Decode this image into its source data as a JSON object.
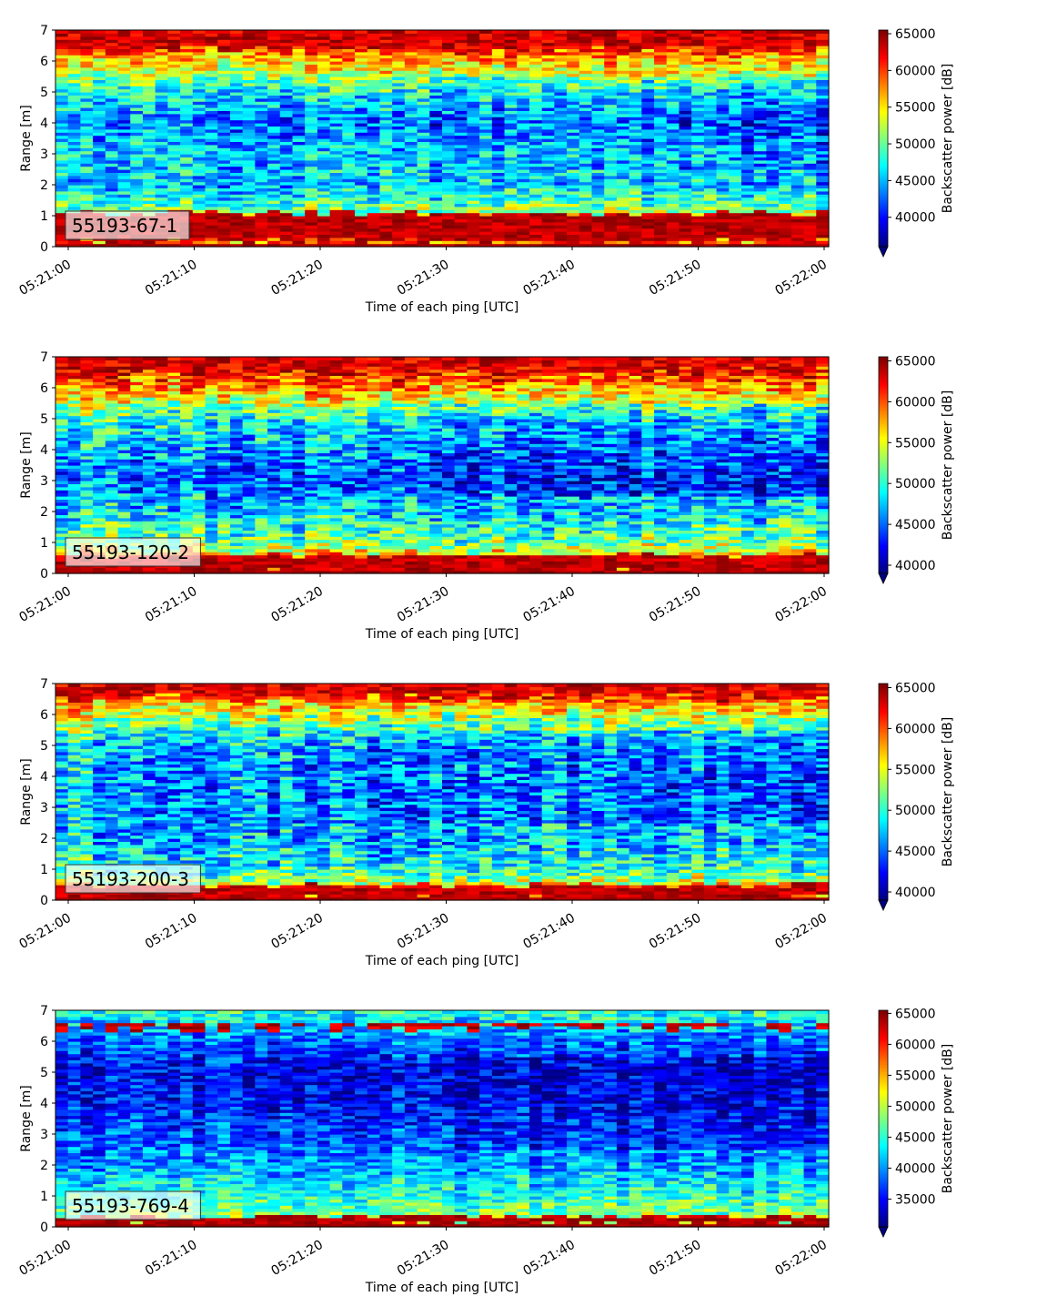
{
  "chart_data": [
    {
      "type": "heatmap",
      "label": "55193-67-1",
      "xlabel": "Time of each ping [UTC]",
      "ylabel": "Range [m]",
      "colorbar_label": "Backscatter power [dB]",
      "x_range": [
        "05:21:00",
        "05:22:00"
      ],
      "x_ticks": [
        "05:21:00",
        "05:21:10",
        "05:21:20",
        "05:21:30",
        "05:21:40",
        "05:21:50",
        "05:22:00"
      ],
      "ylim": [
        0,
        7
      ],
      "y_ticks": [
        "0",
        "1",
        "2",
        "3",
        "4",
        "5",
        "6",
        "7"
      ],
      "clim": [
        36000,
        65500
      ],
      "colorbar_ticks": [
        "40000",
        "45000",
        "50000",
        "55000",
        "60000",
        "65000"
      ],
      "colormap": "jet",
      "colorbar_extend": "min",
      "surface_band_m": [
        0.2,
        1.1
      ],
      "top_band_m": [
        6.3,
        7.0
      ],
      "profile_range_m": [
        0,
        1,
        2,
        3,
        4,
        5,
        6,
        7
      ],
      "profile_power": [
        60000,
        52000,
        45000,
        47000,
        44000,
        48000,
        56000,
        65000
      ]
    },
    {
      "type": "heatmap",
      "label": "55193-120-2",
      "xlabel": "Time of each ping [UTC]",
      "ylabel": "Range [m]",
      "colorbar_label": "Backscatter power [dB]",
      "x_range": [
        "05:21:00",
        "05:22:00"
      ],
      "x_ticks": [
        "05:21:00",
        "05:21:10",
        "05:21:20",
        "05:21:30",
        "05:21:40",
        "05:21:50",
        "05:22:00"
      ],
      "ylim": [
        0,
        7
      ],
      "y_ticks": [
        "0",
        "1",
        "2",
        "3",
        "4",
        "5",
        "6",
        "7"
      ],
      "clim": [
        39000,
        65500
      ],
      "colorbar_ticks": [
        "40000",
        "45000",
        "50000",
        "55000",
        "60000",
        "65000"
      ],
      "colormap": "jet",
      "colorbar_extend": "min",
      "surface_band_m": [
        0.1,
        0.6
      ],
      "top_band_m": [
        6.5,
        7.0
      ],
      "profile_range_m": [
        0,
        1,
        2,
        3,
        4,
        5,
        6,
        7
      ],
      "profile_power": [
        63000,
        52000,
        48000,
        45000,
        47000,
        50000,
        58000,
        65000
      ]
    },
    {
      "type": "heatmap",
      "label": "55193-200-3",
      "xlabel": "Time of each ping [UTC]",
      "ylabel": "Range [m]",
      "colorbar_label": "Backscatter power [dB]",
      "x_range": [
        "05:21:00",
        "05:22:00"
      ],
      "x_ticks": [
        "05:21:00",
        "05:21:10",
        "05:21:20",
        "05:21:30",
        "05:21:40",
        "05:21:50",
        "05:22:00"
      ],
      "ylim": [
        0,
        7
      ],
      "y_ticks": [
        "0",
        "1",
        "2",
        "3",
        "4",
        "5",
        "6",
        "7"
      ],
      "clim": [
        39000,
        65500
      ],
      "colorbar_ticks": [
        "40000",
        "45000",
        "50000",
        "55000",
        "60000",
        "65000"
      ],
      "colormap": "jet",
      "colorbar_extend": "min",
      "surface_band_m": [
        0.1,
        0.5
      ],
      "top_band_m": [
        6.5,
        7.0
      ],
      "profile_range_m": [
        0,
        1,
        2,
        3,
        4,
        5,
        6,
        7
      ],
      "profile_power": [
        60000,
        50000,
        47000,
        47000,
        47000,
        48000,
        54000,
        64000
      ]
    },
    {
      "type": "heatmap",
      "label": "55193-769-4",
      "xlabel": "Time of each ping [UTC]",
      "ylabel": "Range [m]",
      "colorbar_label": "Backscatter power [dB]",
      "x_range": [
        "05:21:00",
        "05:22:00"
      ],
      "x_ticks": [
        "05:21:00",
        "05:21:10",
        "05:21:20",
        "05:21:30",
        "05:21:40",
        "05:21:50",
        "05:22:00"
      ],
      "ylim": [
        0,
        7
      ],
      "y_ticks": [
        "0",
        "1",
        "2",
        "3",
        "4",
        "5",
        "6",
        "7"
      ],
      "clim": [
        30500,
        65500
      ],
      "colorbar_ticks": [
        "35000",
        "40000",
        "45000",
        "50000",
        "55000",
        "60000",
        "65000"
      ],
      "colormap": "jet",
      "colorbar_extend": "min",
      "surface_band_m": [
        0.1,
        0.35
      ],
      "top_band_m": [
        6.4,
        6.6
      ],
      "profile_range_m": [
        0,
        1,
        2,
        3,
        4,
        5,
        6,
        7
      ],
      "profile_power": [
        50000,
        45000,
        40000,
        38000,
        36000,
        35000,
        38000,
        45000
      ]
    }
  ]
}
